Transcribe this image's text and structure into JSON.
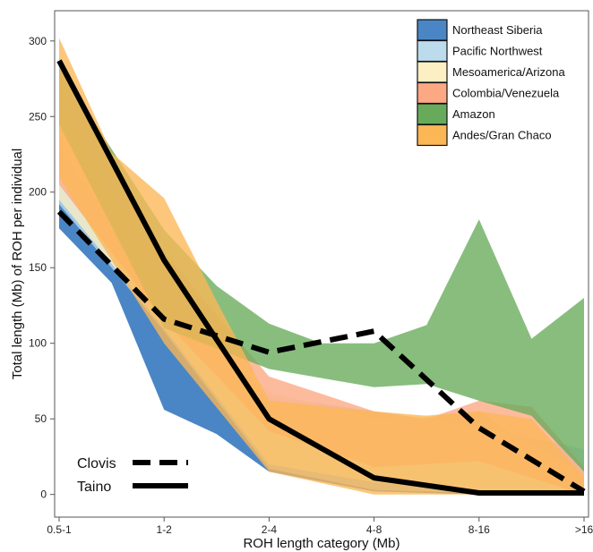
{
  "chart_data": {
    "type": "area",
    "xlabel": "ROH length category (Mb)",
    "ylabel": "Total length (Mb) of ROH per individual",
    "categories": [
      "0.5-1",
      "1-2",
      "2-4",
      "4-8",
      "8-16",
      ">16"
    ],
    "ylim": [
      -15,
      320
    ],
    "yticks": [
      0,
      50,
      100,
      150,
      200,
      250,
      300
    ],
    "grid": false,
    "legend_position": "top-right",
    "band_series": [
      {
        "name": "Northeast Siberia",
        "color": "#4a86c5",
        "upper": [
          [
            0,
            205
          ],
          [
            0.5,
            170
          ],
          [
            1,
            125
          ],
          [
            1.5,
            85
          ],
          [
            2,
            47
          ],
          [
            3,
            47
          ],
          [
            4,
            55
          ],
          [
            5,
            5
          ]
        ],
        "lower": [
          [
            0,
            176
          ],
          [
            0.5,
            140
          ],
          [
            1,
            56
          ],
          [
            1.5,
            40
          ],
          [
            2,
            15
          ],
          [
            3,
            2
          ],
          [
            4,
            0
          ],
          [
            5,
            0
          ]
        ]
      },
      {
        "name": "Pacific Northwest",
        "color": "#bcdcee",
        "upper": [
          [
            0,
            230
          ],
          [
            1,
            130
          ],
          [
            2,
            65
          ],
          [
            3,
            55
          ],
          [
            4,
            45
          ],
          [
            5,
            30
          ]
        ],
        "lower": [
          [
            0,
            192
          ],
          [
            1,
            108
          ],
          [
            2,
            17
          ],
          [
            3,
            3
          ],
          [
            4,
            1
          ],
          [
            5,
            0
          ]
        ]
      },
      {
        "name": "Mesoamerica/Arizona",
        "color": "#fdefc4",
        "upper": [
          [
            0,
            265
          ],
          [
            1,
            130
          ],
          [
            2,
            68
          ],
          [
            3,
            50
          ],
          [
            4,
            55
          ],
          [
            5,
            12
          ]
        ],
        "lower": [
          [
            0,
            195
          ],
          [
            1,
            110
          ],
          [
            2,
            20
          ],
          [
            3,
            8
          ],
          [
            4,
            2
          ],
          [
            5,
            0
          ]
        ]
      },
      {
        "name": "Colombia/Venezuela",
        "color": "#fca883",
        "upper": [
          [
            0,
            280
          ],
          [
            1,
            160
          ],
          [
            2,
            78
          ],
          [
            3,
            55
          ],
          [
            3.5,
            50
          ],
          [
            4,
            62
          ],
          [
            4.5,
            58
          ],
          [
            5,
            18
          ]
        ],
        "lower": [
          [
            0,
            205
          ],
          [
            1,
            115
          ],
          [
            2,
            42
          ],
          [
            3,
            18
          ],
          [
            4,
            22
          ],
          [
            5,
            0
          ]
        ]
      },
      {
        "name": "Amazon",
        "color": "#67ab5a",
        "upper": [
          [
            0,
            282
          ],
          [
            1,
            175
          ],
          [
            1.5,
            138
          ],
          [
            2,
            113
          ],
          [
            2.5,
            100
          ],
          [
            3,
            100
          ],
          [
            3.5,
            112
          ],
          [
            4,
            182
          ],
          [
            4.5,
            103
          ],
          [
            5,
            130
          ]
        ],
        "lower": [
          [
            0,
            245
          ],
          [
            1,
            110
          ],
          [
            2,
            83
          ],
          [
            2.5,
            77
          ],
          [
            3,
            71
          ],
          [
            3.5,
            73
          ],
          [
            4,
            62
          ],
          [
            4.5,
            52
          ],
          [
            5,
            15
          ]
        ]
      },
      {
        "name": "Andes/Gran Chaco",
        "color": "#fbb756",
        "upper": [
          [
            0,
            302
          ],
          [
            0.5,
            226
          ],
          [
            1,
            196
          ],
          [
            1.5,
            128
          ],
          [
            2,
            62
          ],
          [
            3,
            55
          ],
          [
            3.5,
            52
          ],
          [
            4,
            55
          ],
          [
            4.5,
            50
          ],
          [
            5,
            12
          ]
        ],
        "lower": [
          [
            0,
            210
          ],
          [
            1,
            100
          ],
          [
            2,
            15
          ],
          [
            3,
            0
          ],
          [
            4,
            0
          ],
          [
            5,
            0
          ]
        ]
      }
    ],
    "line_series": [
      {
        "name": "Clovis",
        "dash": "dashed",
        "points": [
          [
            0,
            187
          ],
          [
            1,
            116
          ],
          [
            2,
            94
          ],
          [
            3,
            108
          ],
          [
            4,
            44
          ],
          [
            5,
            2
          ]
        ]
      },
      {
        "name": "Taino",
        "dash": "solid",
        "points": [
          [
            0,
            287
          ],
          [
            1,
            155
          ],
          [
            2,
            50
          ],
          [
            3,
            11
          ],
          [
            4,
            1
          ],
          [
            5,
            1
          ]
        ]
      }
    ]
  }
}
